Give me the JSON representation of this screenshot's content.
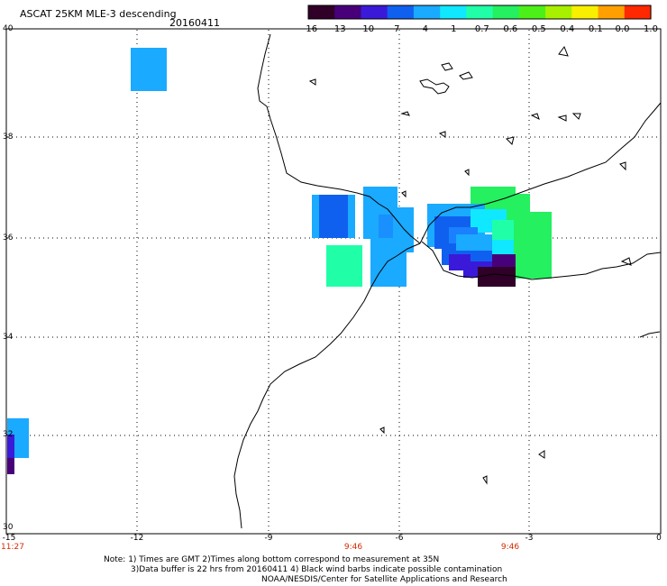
{
  "header": {
    "title": "ASCAT 25KM MLE-3 descending",
    "date": "20160411"
  },
  "colorbar": {
    "labels": [
      "-16",
      "-13",
      "-10",
      "-7",
      "-4",
      "-1",
      "-0.7",
      "-0.6",
      "-0.5",
      "-0.4",
      "-0.1",
      "0.0",
      "1.0"
    ],
    "colors": [
      "#300028",
      "#48007a",
      "#3a1ad8",
      "#1060f0",
      "#1aaaff",
      "#10e8ff",
      "#20ffa8",
      "#24f060",
      "#4cf018",
      "#a8f000",
      "#f8f000",
      "#ffa000",
      "#ff2800"
    ]
  },
  "axes": {
    "lat_labels": [
      "40",
      "38",
      "36",
      "34",
      "32",
      "30"
    ],
    "lon_labels": [
      "-15",
      "-12",
      "-9",
      "-6",
      "-3",
      "0"
    ],
    "time_labels": [
      {
        "text": "11:27",
        "lon": -15
      },
      {
        "text": "9:46",
        "lon": -7.9
      },
      {
        "text": "9:46",
        "lon": -3.6
      }
    ]
  },
  "notes": {
    "line1": "Note: 1) Times are GMT 2)Times along bottom correspond to measurement at 35N",
    "line2": "3)Data buffer is 22 hrs from 20160411 4) Black wind barbs indicate possible contamination",
    "line3": "NOAA/NESDIS/Center for Satellite Applications and Research"
  }
}
